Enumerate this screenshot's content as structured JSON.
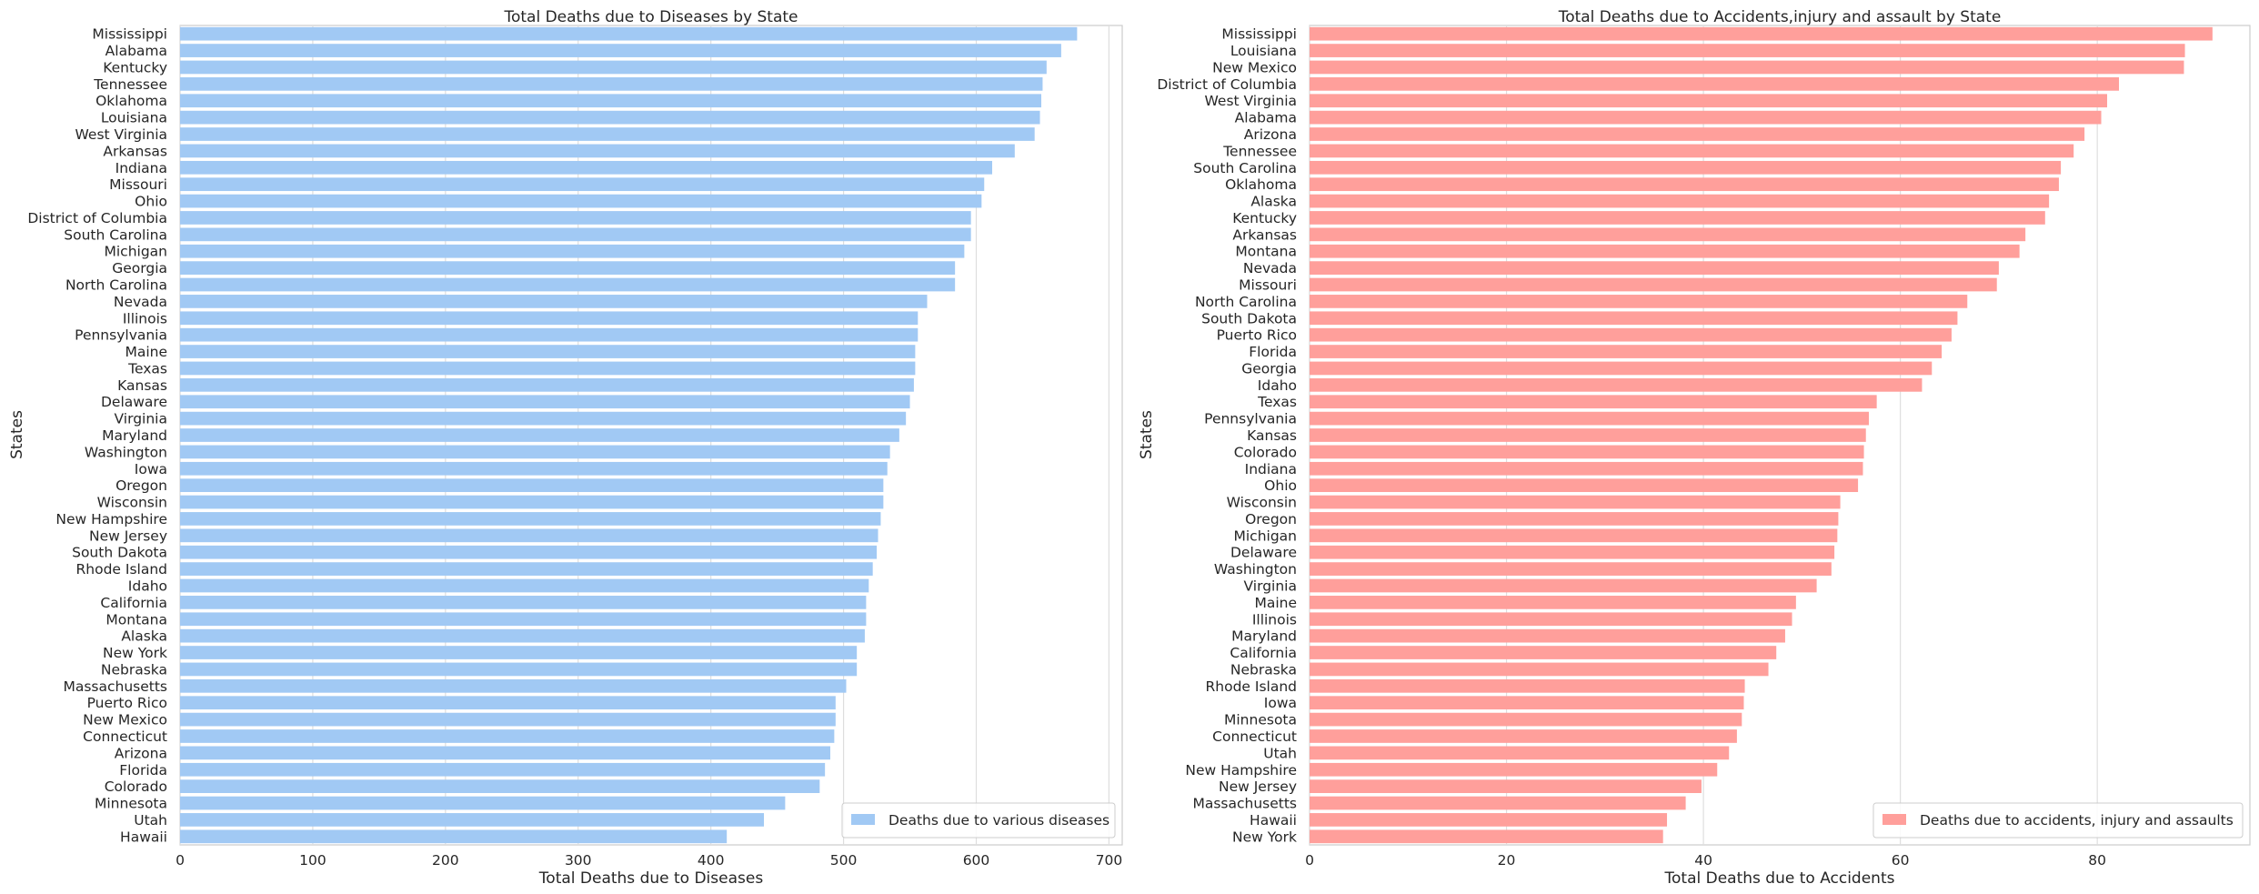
{
  "charts": [
    {
      "type": "bar",
      "orientation": "horizontal",
      "title": "Total Deaths due to Diseases by State",
      "xlabel": "Total Deaths due to Diseases",
      "ylabel": "States",
      "xlim": [
        0,
        710
      ],
      "xticks": [
        0,
        100,
        200,
        300,
        400,
        500,
        600,
        700
      ],
      "grid": true,
      "legend": {
        "label": "Deaths due to various diseases",
        "position": "lower-right"
      },
      "color": "#a1c9f4",
      "categories": [
        "Mississippi",
        "Alabama",
        "Kentucky",
        "Tennessee",
        "Oklahoma",
        "Louisiana",
        "West Virginia",
        "Arkansas",
        "Indiana",
        "Missouri",
        "Ohio",
        "District of Columbia",
        "South Carolina",
        "Michigan",
        "Georgia",
        "North Carolina",
        "Nevada",
        "Illinois",
        "Pennsylvania",
        "Maine",
        "Texas",
        "Kansas",
        "Delaware",
        "Virginia",
        "Maryland",
        "Washington",
        "Iowa",
        "Oregon",
        "Wisconsin",
        "New Hampshire",
        "New Jersey",
        "South Dakota",
        "Rhode Island",
        "Idaho",
        "California",
        "Montana",
        "Alaska",
        "New York",
        "Nebraska",
        "Massachusetts",
        "Puerto Rico",
        "New Mexico",
        "Connecticut",
        "Arizona",
        "Florida",
        "Colorado",
        "Minnesota",
        "Utah",
        "Hawaii"
      ],
      "values": [
        676,
        664,
        653,
        650,
        649,
        648,
        644,
        629,
        612,
        606,
        604,
        596,
        596,
        591,
        584,
        584,
        563,
        556,
        556,
        554,
        554,
        553,
        550,
        547,
        542,
        535,
        533,
        530,
        530,
        528,
        526,
        525,
        522,
        519,
        517,
        517,
        516,
        510,
        510,
        502,
        494,
        494,
        493,
        490,
        486,
        482,
        456,
        440,
        412
      ]
    },
    {
      "type": "bar",
      "orientation": "horizontal",
      "title": "Total Deaths due to Accidents,injury and assault by State",
      "xlabel": "Total Deaths due to Accidents",
      "ylabel": "States",
      "xlim": [
        0,
        95.5
      ],
      "xticks": [
        0,
        20,
        40,
        60,
        80
      ],
      "grid": true,
      "legend": {
        "label": "Deaths due to accidents, injury and assaults",
        "position": "lower-right"
      },
      "color": "#ff9f9b",
      "categories": [
        "Mississippi",
        "Louisiana",
        "New Mexico",
        "District of Columbia",
        "West Virginia",
        "Alabama",
        "Arizona",
        "Tennessee",
        "South Carolina",
        "Oklahoma",
        "Alaska",
        "Kentucky",
        "Arkansas",
        "Montana",
        "Nevada",
        "Missouri",
        "North Carolina",
        "South Dakota",
        "Puerto Rico",
        "Florida",
        "Georgia",
        "Idaho",
        "Texas",
        "Pennsylvania",
        "Kansas",
        "Colorado",
        "Indiana",
        "Ohio",
        "Wisconsin",
        "Oregon",
        "Michigan",
        "Delaware",
        "Washington",
        "Virginia",
        "Maine",
        "Illinois",
        "Maryland",
        "California",
        "Nebraska",
        "Rhode Island",
        "Iowa",
        "Minnesota",
        "Connecticut",
        "Utah",
        "New Hampshire",
        "New Jersey",
        "Massachusetts",
        "Hawaii",
        "New York"
      ],
      "values": [
        91.7,
        88.9,
        88.8,
        82.2,
        81.0,
        80.4,
        78.7,
        77.6,
        76.3,
        76.1,
        75.1,
        74.7,
        72.7,
        72.1,
        70.0,
        69.8,
        66.8,
        65.8,
        65.2,
        64.2,
        63.2,
        62.2,
        57.6,
        56.8,
        56.5,
        56.3,
        56.2,
        55.7,
        53.9,
        53.7,
        53.6,
        53.3,
        53.0,
        51.5,
        49.4,
        49.0,
        48.3,
        47.4,
        46.6,
        44.2,
        44.1,
        43.9,
        43.4,
        42.6,
        41.4,
        39.8,
        38.2,
        36.3,
        35.9
      ]
    }
  ]
}
